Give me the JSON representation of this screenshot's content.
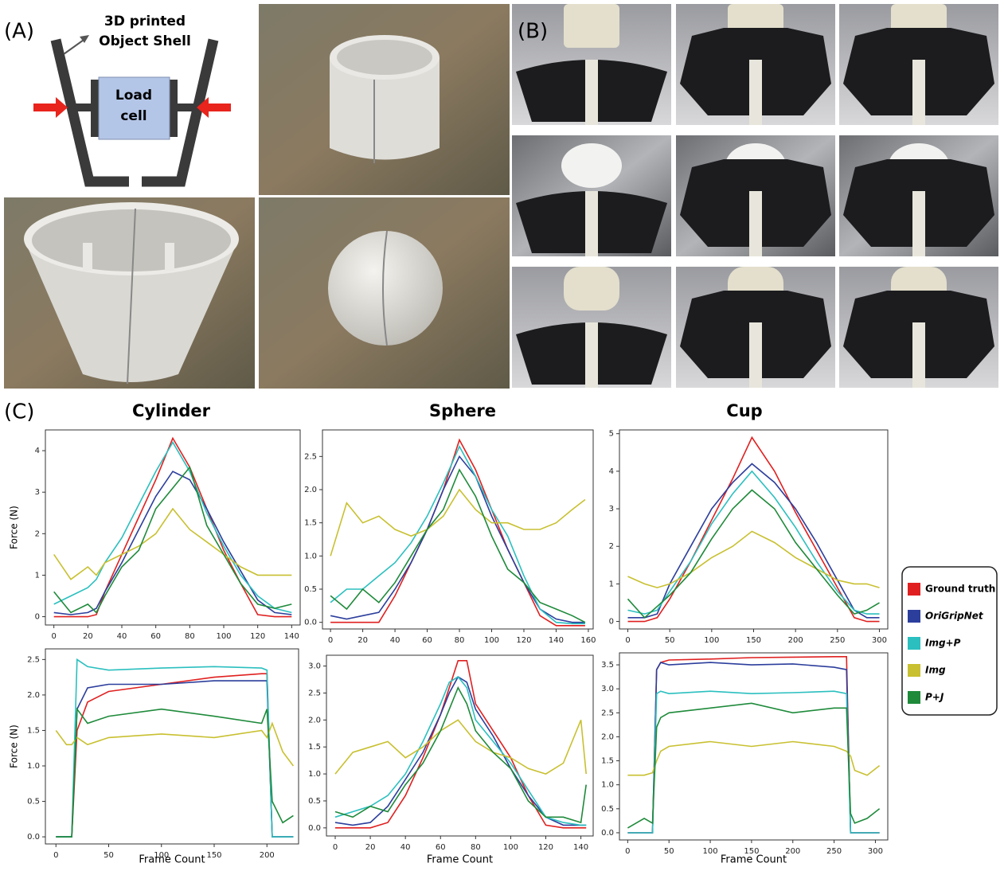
{
  "figure": {
    "panel_labels": [
      "(A)",
      "(B)",
      "(C)"
    ],
    "shell_label": [
      "3D printed",
      "Object Shell"
    ],
    "load_cell_label": [
      "Load",
      "cell"
    ]
  },
  "chart_data": [
    {
      "type": "line",
      "title": "Cylinder",
      "ylabel": "Force (N)",
      "x": [
        0,
        10,
        20,
        25,
        30,
        40,
        50,
        60,
        70,
        80,
        90,
        100,
        110,
        120,
        130,
        140
      ],
      "xlim": [
        -5,
        145
      ],
      "xticks": [
        0,
        20,
        40,
        60,
        80,
        100,
        120,
        140
      ],
      "ylim": [
        -0.2,
        4.5
      ],
      "yticks": [
        0,
        1,
        2,
        3,
        4
      ],
      "series": [
        {
          "name": "Ground truth",
          "color": "#e02020",
          "values": [
            0,
            0,
            0,
            0.05,
            0.6,
            1.5,
            2.4,
            3.3,
            4.3,
            3.6,
            2.6,
            1.6,
            0.8,
            0.05,
            0,
            0
          ]
        },
        {
          "name": "OriGripNet",
          "color": "#2c3e9c",
          "values": [
            0.1,
            0.05,
            0.1,
            0.2,
            0.6,
            1.3,
            2.1,
            2.9,
            3.5,
            3.3,
            2.6,
            1.8,
            1.1,
            0.4,
            0.1,
            0.05
          ]
        },
        {
          "name": "Img+P",
          "color": "#2bbfbf",
          "values": [
            0.3,
            0.5,
            0.7,
            0.9,
            1.3,
            1.9,
            2.7,
            3.5,
            4.2,
            3.5,
            2.5,
            1.7,
            1.0,
            0.5,
            0.2,
            0.1
          ]
        },
        {
          "name": "Img",
          "color": "#c8c030",
          "values": [
            1.5,
            0.9,
            1.2,
            1.0,
            1.3,
            1.5,
            1.7,
            2.0,
            2.6,
            2.1,
            1.8,
            1.5,
            1.2,
            1.0,
            1.0,
            1.0
          ]
        },
        {
          "name": "P+J",
          "color": "#1e8a3a",
          "values": [
            0.6,
            0.1,
            0.3,
            0.1,
            0.5,
            1.2,
            1.6,
            2.6,
            3.1,
            3.6,
            2.2,
            1.5,
            0.8,
            0.3,
            0.2,
            0.3
          ]
        }
      ]
    },
    {
      "type": "line",
      "title": "Sphere",
      "x": [
        0,
        10,
        20,
        30,
        40,
        50,
        60,
        70,
        80,
        90,
        100,
        110,
        120,
        130,
        140,
        150,
        158
      ],
      "xlim": [
        -5,
        163
      ],
      "xticks": [
        0,
        20,
        40,
        60,
        80,
        100,
        120,
        140,
        160
      ],
      "ylim": [
        -0.1,
        2.9
      ],
      "yticks": [
        {
          "value": 0,
          "label": "0.0"
        },
        0.5,
        {
          "value": 1,
          "label": "1.0"
        },
        1.5,
        {
          "value": 2,
          "label": "2.0"
        },
        2.5
      ],
      "series": [
        {
          "name": "Ground truth",
          "color": "#e02020",
          "values": [
            0,
            0,
            0,
            0,
            0.4,
            0.9,
            1.4,
            2.0,
            2.75,
            2.3,
            1.7,
            1.1,
            0.6,
            0.1,
            -0.05,
            -0.05,
            -0.05
          ]
        },
        {
          "name": "OriGripNet",
          "color": "#2c3e9c",
          "values": [
            0.1,
            0.05,
            0.1,
            0.15,
            0.5,
            0.9,
            1.4,
            2.0,
            2.5,
            2.2,
            1.6,
            1.1,
            0.6,
            0.2,
            0.05,
            0,
            0
          ]
        },
        {
          "name": "Img+P",
          "color": "#2bbfbf",
          "values": [
            0.3,
            0.5,
            0.5,
            0.7,
            0.9,
            1.2,
            1.6,
            2.1,
            2.65,
            2.2,
            1.7,
            1.3,
            0.7,
            0.2,
            0,
            -0.02,
            -0.02
          ]
        },
        {
          "name": "Img",
          "color": "#c8c030",
          "values": [
            1.0,
            1.8,
            1.5,
            1.6,
            1.4,
            1.3,
            1.4,
            1.6,
            2.0,
            1.7,
            1.5,
            1.5,
            1.4,
            1.4,
            1.5,
            1.7,
            1.85
          ]
        },
        {
          "name": "P+J",
          "color": "#1e8a3a",
          "values": [
            0.4,
            0.2,
            0.5,
            0.3,
            0.6,
            1.0,
            1.4,
            1.7,
            2.3,
            1.9,
            1.3,
            0.8,
            0.6,
            0.3,
            0.2,
            0.1,
            0
          ]
        }
      ]
    },
    {
      "type": "line",
      "title": "Cup",
      "x": [
        0,
        20,
        35,
        50,
        75,
        100,
        125,
        148,
        175,
        200,
        225,
        250,
        270,
        285,
        300
      ],
      "xlim": [
        -10,
        310
      ],
      "xticks": [
        0,
        50,
        100,
        150,
        200,
        250,
        300
      ],
      "ylim": [
        -0.2,
        5.1
      ],
      "yticks": [
        0,
        1,
        2,
        3,
        4,
        5
      ],
      "series": [
        {
          "name": "Ground truth",
          "color": "#e02020",
          "values": [
            0,
            0,
            0.1,
            0.6,
            1.6,
            2.7,
            3.8,
            4.9,
            4.0,
            2.9,
            1.9,
            0.9,
            0.1,
            0,
            0
          ]
        },
        {
          "name": "OriGripNet",
          "color": "#2c3e9c",
          "values": [
            0.1,
            0.1,
            0.2,
            1.0,
            2.0,
            3.0,
            3.7,
            4.2,
            3.7,
            3.0,
            2.1,
            1.1,
            0.3,
            0.1,
            0.1
          ]
        },
        {
          "name": "Img+P",
          "color": "#2bbfbf",
          "values": [
            0.3,
            0.2,
            0.3,
            0.8,
            1.6,
            2.6,
            3.4,
            4.0,
            3.3,
            2.5,
            1.6,
            0.8,
            0.3,
            0.2,
            0.2
          ]
        },
        {
          "name": "Img",
          "color": "#c8c030",
          "values": [
            1.2,
            1.0,
            0.9,
            1.0,
            1.3,
            1.7,
            2.0,
            2.4,
            2.1,
            1.7,
            1.4,
            1.1,
            1.0,
            1.0,
            0.9
          ]
        },
        {
          "name": "P+J",
          "color": "#1e8a3a",
          "values": [
            0.6,
            0.1,
            0.4,
            0.7,
            1.3,
            2.2,
            3.0,
            3.5,
            3.0,
            2.1,
            1.4,
            0.7,
            0.2,
            0.3,
            0.5
          ]
        }
      ]
    },
    {
      "type": "line",
      "ylabel": "Force (N)",
      "xlabel": "Frame Count",
      "x": [
        0,
        10,
        15,
        20,
        30,
        50,
        100,
        150,
        195,
        200,
        205,
        215,
        225
      ],
      "xlim": [
        -10,
        230
      ],
      "xticks": [
        0,
        50,
        100,
        150,
        200
      ],
      "ylim": [
        -0.1,
        2.65
      ],
      "yticks": [
        {
          "value": 0,
          "label": "0.0"
        },
        0.5,
        {
          "value": 1,
          "label": "1.0"
        },
        1.5,
        {
          "value": 2,
          "label": "2.0"
        },
        2.5
      ],
      "series": [
        {
          "name": "Ground truth",
          "color": "#e02020",
          "values": [
            0,
            0,
            0,
            1.5,
            1.9,
            2.05,
            2.15,
            2.25,
            2.3,
            2.3,
            0,
            0,
            0
          ]
        },
        {
          "name": "OriGripNet",
          "color": "#2c3e9c",
          "values": [
            0,
            0,
            0,
            1.8,
            2.1,
            2.15,
            2.15,
            2.2,
            2.2,
            2.2,
            0,
            0,
            0
          ]
        },
        {
          "name": "Img+P",
          "color": "#2bbfbf",
          "values": [
            0,
            0,
            0,
            2.5,
            2.4,
            2.35,
            2.38,
            2.4,
            2.38,
            2.35,
            0,
            0,
            0
          ]
        },
        {
          "name": "Img",
          "color": "#c8c030",
          "values": [
            1.5,
            1.3,
            1.3,
            1.4,
            1.3,
            1.4,
            1.45,
            1.4,
            1.5,
            1.4,
            1.6,
            1.2,
            1.0
          ]
        },
        {
          "name": "P+J",
          "color": "#1e8a3a",
          "values": [
            0,
            0,
            0,
            1.8,
            1.6,
            1.7,
            1.8,
            1.7,
            1.6,
            1.8,
            0.5,
            0.2,
            0.3
          ]
        }
      ]
    },
    {
      "type": "line",
      "xlabel": "Frame Count",
      "x": [
        0,
        10,
        20,
        30,
        40,
        50,
        60,
        65,
        70,
        75,
        80,
        90,
        100,
        110,
        120,
        130,
        140,
        143
      ],
      "xlim": [
        -5,
        147
      ],
      "xticks": [
        0,
        20,
        40,
        60,
        80,
        100,
        120,
        140
      ],
      "ylim": [
        -0.15,
        3.2
      ],
      "yticks": [
        {
          "value": 0,
          "label": "0.0"
        },
        0.5,
        {
          "value": 1,
          "label": "1.0"
        },
        1.5,
        {
          "value": 2,
          "label": "2.0"
        },
        2.5,
        {
          "value": 3,
          "label": "3.0"
        }
      ],
      "series": [
        {
          "name": "Ground truth",
          "color": "#e02020",
          "values": [
            0,
            0,
            0,
            0.1,
            0.6,
            1.3,
            2.1,
            2.6,
            3.1,
            3.1,
            2.3,
            1.8,
            1.3,
            0.6,
            0.05,
            0,
            0,
            0
          ]
        },
        {
          "name": "OriGripNet",
          "color": "#2c3e9c",
          "values": [
            0.1,
            0.05,
            0.1,
            0.4,
            0.9,
            1.4,
            2.1,
            2.5,
            2.8,
            2.7,
            2.2,
            1.7,
            1.1,
            0.6,
            0.2,
            0.05,
            0.05,
            0.05
          ]
        },
        {
          "name": "Img+P",
          "color": "#2bbfbf",
          "values": [
            0.2,
            0.3,
            0.4,
            0.6,
            1.0,
            1.6,
            2.3,
            2.7,
            2.8,
            2.6,
            2.0,
            1.6,
            1.2,
            0.7,
            0.2,
            0.1,
            0.05,
            0.05
          ]
        },
        {
          "name": "Img",
          "color": "#c8c030",
          "values": [
            1.0,
            1.4,
            1.5,
            1.6,
            1.3,
            1.5,
            1.8,
            1.9,
            2.0,
            1.8,
            1.6,
            1.4,
            1.3,
            1.1,
            1.0,
            1.2,
            2.0,
            1.0
          ]
        },
        {
          "name": "P+J",
          "color": "#1e8a3a",
          "values": [
            0.3,
            0.2,
            0.4,
            0.3,
            0.8,
            1.2,
            1.8,
            2.2,
            2.6,
            2.3,
            1.8,
            1.4,
            1.1,
            0.5,
            0.2,
            0.2,
            0.1,
            0.8
          ]
        }
      ]
    },
    {
      "type": "line",
      "xlabel": "Frame Count",
      "x": [
        0,
        20,
        30,
        35,
        40,
        50,
        100,
        150,
        200,
        250,
        265,
        270,
        275,
        290,
        305
      ],
      "xlim": [
        -10,
        315
      ],
      "xticks": [
        0,
        50,
        100,
        150,
        200,
        250,
        300
      ],
      "ylim": [
        -0.15,
        3.75
      ],
      "yticks": [
        {
          "value": 0,
          "label": "0.0"
        },
        0.5,
        {
          "value": 1,
          "label": "1.0"
        },
        1.5,
        {
          "value": 2,
          "label": "2.0"
        },
        2.5,
        {
          "value": 3,
          "label": "3.0"
        },
        3.5
      ],
      "series": [
        {
          "name": "Ground truth",
          "color": "#e02020",
          "values": [
            0,
            0,
            0,
            3.4,
            3.55,
            3.6,
            3.62,
            3.65,
            3.66,
            3.67,
            3.67,
            0,
            0,
            0,
            0
          ]
        },
        {
          "name": "OriGripNet",
          "color": "#2c3e9c",
          "values": [
            0,
            0,
            0,
            3.4,
            3.55,
            3.5,
            3.55,
            3.5,
            3.52,
            3.45,
            3.4,
            0,
            0,
            0,
            0
          ]
        },
        {
          "name": "Img+P",
          "color": "#2bbfbf",
          "values": [
            0,
            0,
            0,
            2.9,
            2.95,
            2.9,
            2.95,
            2.9,
            2.92,
            2.95,
            2.9,
            0,
            0,
            0,
            0
          ]
        },
        {
          "name": "Img",
          "color": "#c8c030",
          "values": [
            1.2,
            1.2,
            1.25,
            1.5,
            1.7,
            1.8,
            1.9,
            1.8,
            1.9,
            1.8,
            1.7,
            1.6,
            1.3,
            1.2,
            1.4
          ]
        },
        {
          "name": "P+J",
          "color": "#1e8a3a",
          "values": [
            0.1,
            0.3,
            0.2,
            2.2,
            2.4,
            2.5,
            2.6,
            2.7,
            2.5,
            2.6,
            2.6,
            0.4,
            0.2,
            0.3,
            0.5
          ]
        }
      ]
    }
  ]
}
